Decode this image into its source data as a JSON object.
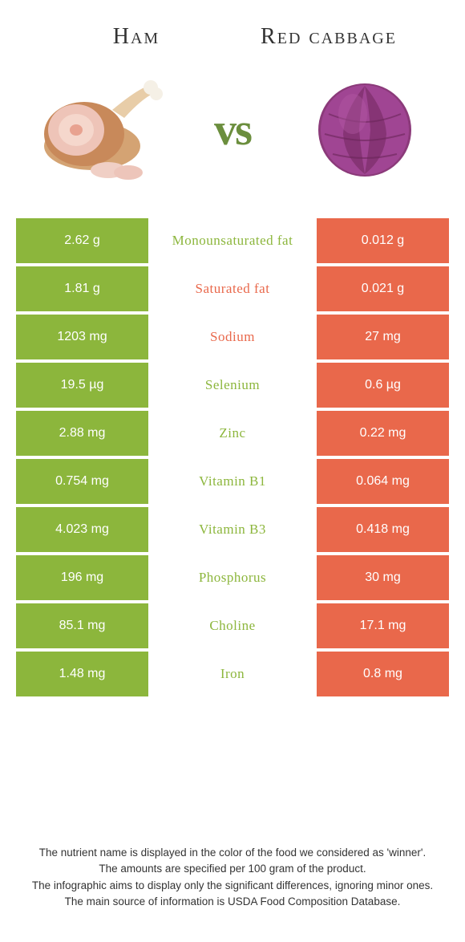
{
  "header": {
    "left_title": "Ham",
    "right_title": "Red cabbage",
    "vs": "vs"
  },
  "colors": {
    "green": "#8cb63c",
    "orange": "#e9684b",
    "text": "#333333",
    "bg": "#ffffff"
  },
  "table": {
    "rows": [
      {
        "left": "2.62 g",
        "label": "Monounsaturated fat",
        "right": "0.012 g",
        "winner": "green"
      },
      {
        "left": "1.81 g",
        "label": "Saturated fat",
        "right": "0.021 g",
        "winner": "orange"
      },
      {
        "left": "1203 mg",
        "label": "Sodium",
        "right": "27 mg",
        "winner": "orange"
      },
      {
        "left": "19.5 µg",
        "label": "Selenium",
        "right": "0.6 µg",
        "winner": "green"
      },
      {
        "left": "2.88 mg",
        "label": "Zinc",
        "right": "0.22 mg",
        "winner": "green"
      },
      {
        "left": "0.754 mg",
        "label": "Vitamin B1",
        "right": "0.064 mg",
        "winner": "green"
      },
      {
        "left": "4.023 mg",
        "label": "Vitamin B3",
        "right": "0.418 mg",
        "winner": "green"
      },
      {
        "left": "196 mg",
        "label": "Phosphorus",
        "right": "30 mg",
        "winner": "green"
      },
      {
        "left": "85.1 mg",
        "label": "Choline",
        "right": "17.1 mg",
        "winner": "green"
      },
      {
        "left": "1.48 mg",
        "label": "Iron",
        "right": "0.8 mg",
        "winner": "green"
      }
    ]
  },
  "footer": {
    "line1": "The nutrient name is displayed in the color of the food we considered as 'winner'.",
    "line2": "The amounts are specified per 100 gram of the product.",
    "line3": "The infographic aims to display only the significant differences, ignoring minor ones.",
    "line4": "The main source of information is USDA Food Composition Database."
  }
}
